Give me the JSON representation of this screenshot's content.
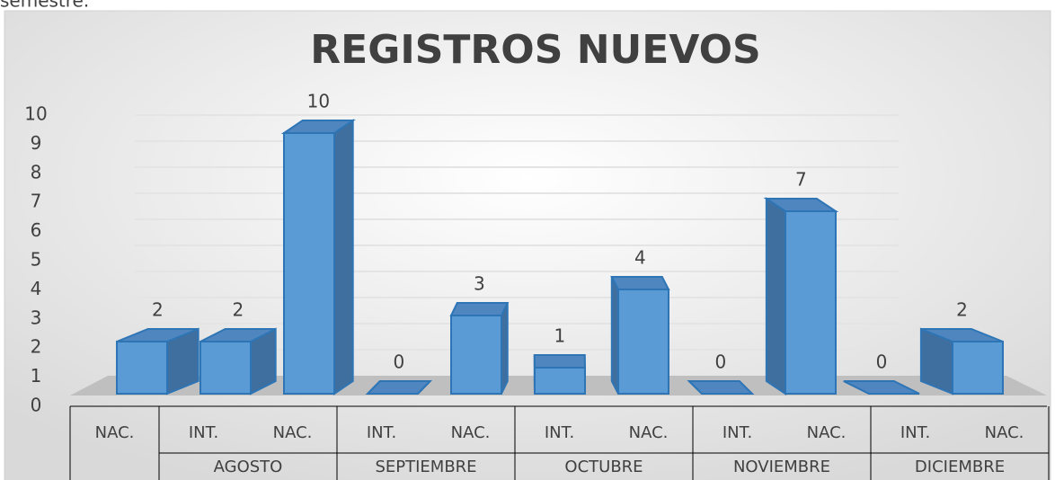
{
  "header_text": "semestre.",
  "chart_data": {
    "type": "bar3d",
    "title": "REGISTROS NUEVOS",
    "categories": [
      "NAC.",
      "INT.",
      "NAC.",
      "INT.",
      "NAC.",
      "INT.",
      "NAC.",
      "INT.",
      "NAC.",
      "INT.",
      "NAC."
    ],
    "groups": [
      null,
      "AGOSTO",
      "AGOSTO",
      "SEPTIEMBRE",
      "SEPTIEMBRE",
      "OCTUBRE",
      "OCTUBRE",
      "NOVIEMBRE",
      "NOVIEMBRE",
      "DICIEMBRE",
      "DICIEMBRE"
    ],
    "values": [
      2,
      2,
      10,
      0,
      3,
      1,
      4,
      0,
      7,
      0,
      2
    ],
    "color": "#5b9bd5",
    "ylim": [
      0,
      10
    ],
    "yticks": [
      0,
      1,
      2,
      3,
      4,
      5,
      6,
      7,
      8,
      9,
      10
    ],
    "grid": true
  }
}
